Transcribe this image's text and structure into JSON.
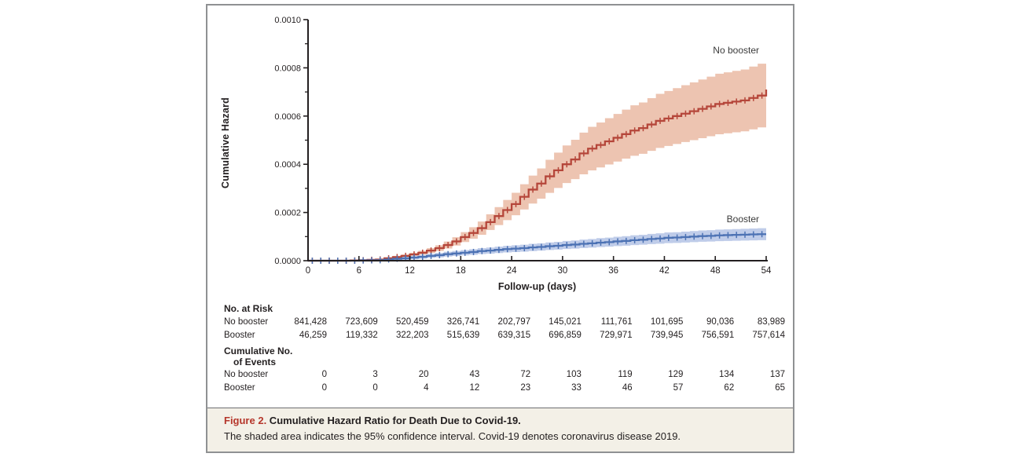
{
  "figure": {
    "caption": {
      "label": "Figure 2.",
      "title": " Cumulative Hazard Ratio for Death Due to Covid-19.",
      "body": "The shaded area indicates the 95% confidence interval. Covid-19 denotes coronavirus disease 2019."
    }
  },
  "chart_data": {
    "type": "line",
    "subtype": "step-cumulative-hazard-with-ci-bands",
    "xlabel": "Follow-up (days)",
    "ylabel": "Cumulative Hazard",
    "xlim": [
      0,
      54
    ],
    "ylim": [
      0,
      0.001
    ],
    "xticks": [
      0,
      6,
      12,
      18,
      24,
      30,
      36,
      42,
      48,
      54
    ],
    "ytick_labels": [
      "0.0000",
      "0.0002",
      "0.0004",
      "0.0006",
      "0.0008",
      "0.0010"
    ],
    "y_minor_step": 0.0001,
    "grid": false,
    "legend_position": "inline-labels",
    "y_value_scale": 0.0001,
    "x_unit": "day (array index = day)",
    "series": [
      {
        "name": "No booster",
        "line_color": "#b5463a",
        "band_color": "#edc4b1",
        "ci_halfwidth": {
          "slope": 0.19,
          "base": 0.02
        },
        "values": [
          0,
          0,
          0,
          0,
          0,
          0.01,
          0.02,
          0.035,
          0.05,
          0.1,
          0.15,
          0.2,
          0.26,
          0.33,
          0.42,
          0.52,
          0.65,
          0.8,
          0.98,
          1.15,
          1.35,
          1.6,
          1.85,
          2.1,
          2.35,
          2.65,
          2.95,
          3.2,
          3.5,
          3.75,
          4.0,
          4.2,
          4.45,
          4.65,
          4.8,
          4.95,
          5.1,
          5.25,
          5.4,
          5.5,
          5.65,
          5.8,
          5.9,
          6.0,
          6.1,
          6.2,
          6.3,
          6.4,
          6.5,
          6.55,
          6.6,
          6.65,
          6.75,
          6.85,
          7.1
        ]
      },
      {
        "name": "Booster",
        "line_color": "#4c72b4",
        "band_color": "#bfcce9",
        "ci_halfwidth": {
          "slope": 0.18,
          "base": 0.05
        },
        "values": [
          0,
          0,
          0,
          0,
          0,
          0,
          0.01,
          0.015,
          0.02,
          0.05,
          0.08,
          0.1,
          0.13,
          0.16,
          0.2,
          0.23,
          0.27,
          0.3,
          0.33,
          0.36,
          0.4,
          0.42,
          0.45,
          0.48,
          0.5,
          0.52,
          0.55,
          0.57,
          0.6,
          0.62,
          0.65,
          0.67,
          0.7,
          0.72,
          0.75,
          0.77,
          0.8,
          0.82,
          0.85,
          0.87,
          0.9,
          0.92,
          0.95,
          0.96,
          0.98,
          1.0,
          1.02,
          1.03,
          1.05,
          1.06,
          1.07,
          1.08,
          1.09,
          1.1,
          1.1
        ]
      }
    ]
  },
  "risk_table": {
    "column_days": [
      0,
      6,
      12,
      18,
      24,
      30,
      36,
      42,
      48,
      54
    ],
    "at_risk_header": "No. at Risk",
    "at_risk_rows": [
      {
        "label": "No booster",
        "values": [
          "841,428",
          "723,609",
          "520,459",
          "326,741",
          "202,797",
          "145,021",
          "111,761",
          "101,695",
          "90,036",
          "83,989"
        ]
      },
      {
        "label": "Booster",
        "values": [
          "46,259",
          "119,332",
          "322,203",
          "515,639",
          "639,315",
          "696,859",
          "729,971",
          "739,945",
          "756,591",
          "757,614"
        ]
      }
    ],
    "events_header_line1": "Cumulative No.",
    "events_header_line2": "of Events",
    "events_rows": [
      {
        "label": "No booster",
        "values": [
          "0",
          "3",
          "20",
          "43",
          "72",
          "103",
          "119",
          "129",
          "134",
          "137"
        ]
      },
      {
        "label": "Booster",
        "values": [
          "0",
          "0",
          "4",
          "12",
          "23",
          "33",
          "46",
          "57",
          "62",
          "65"
        ]
      }
    ]
  },
  "style_colors": {
    "axis": "#231f20",
    "figure_border": "#8f9193",
    "caption_background": "#f3f0e7",
    "caption_rule": "#6d6e71",
    "figure_label_red": "#b5362b"
  }
}
